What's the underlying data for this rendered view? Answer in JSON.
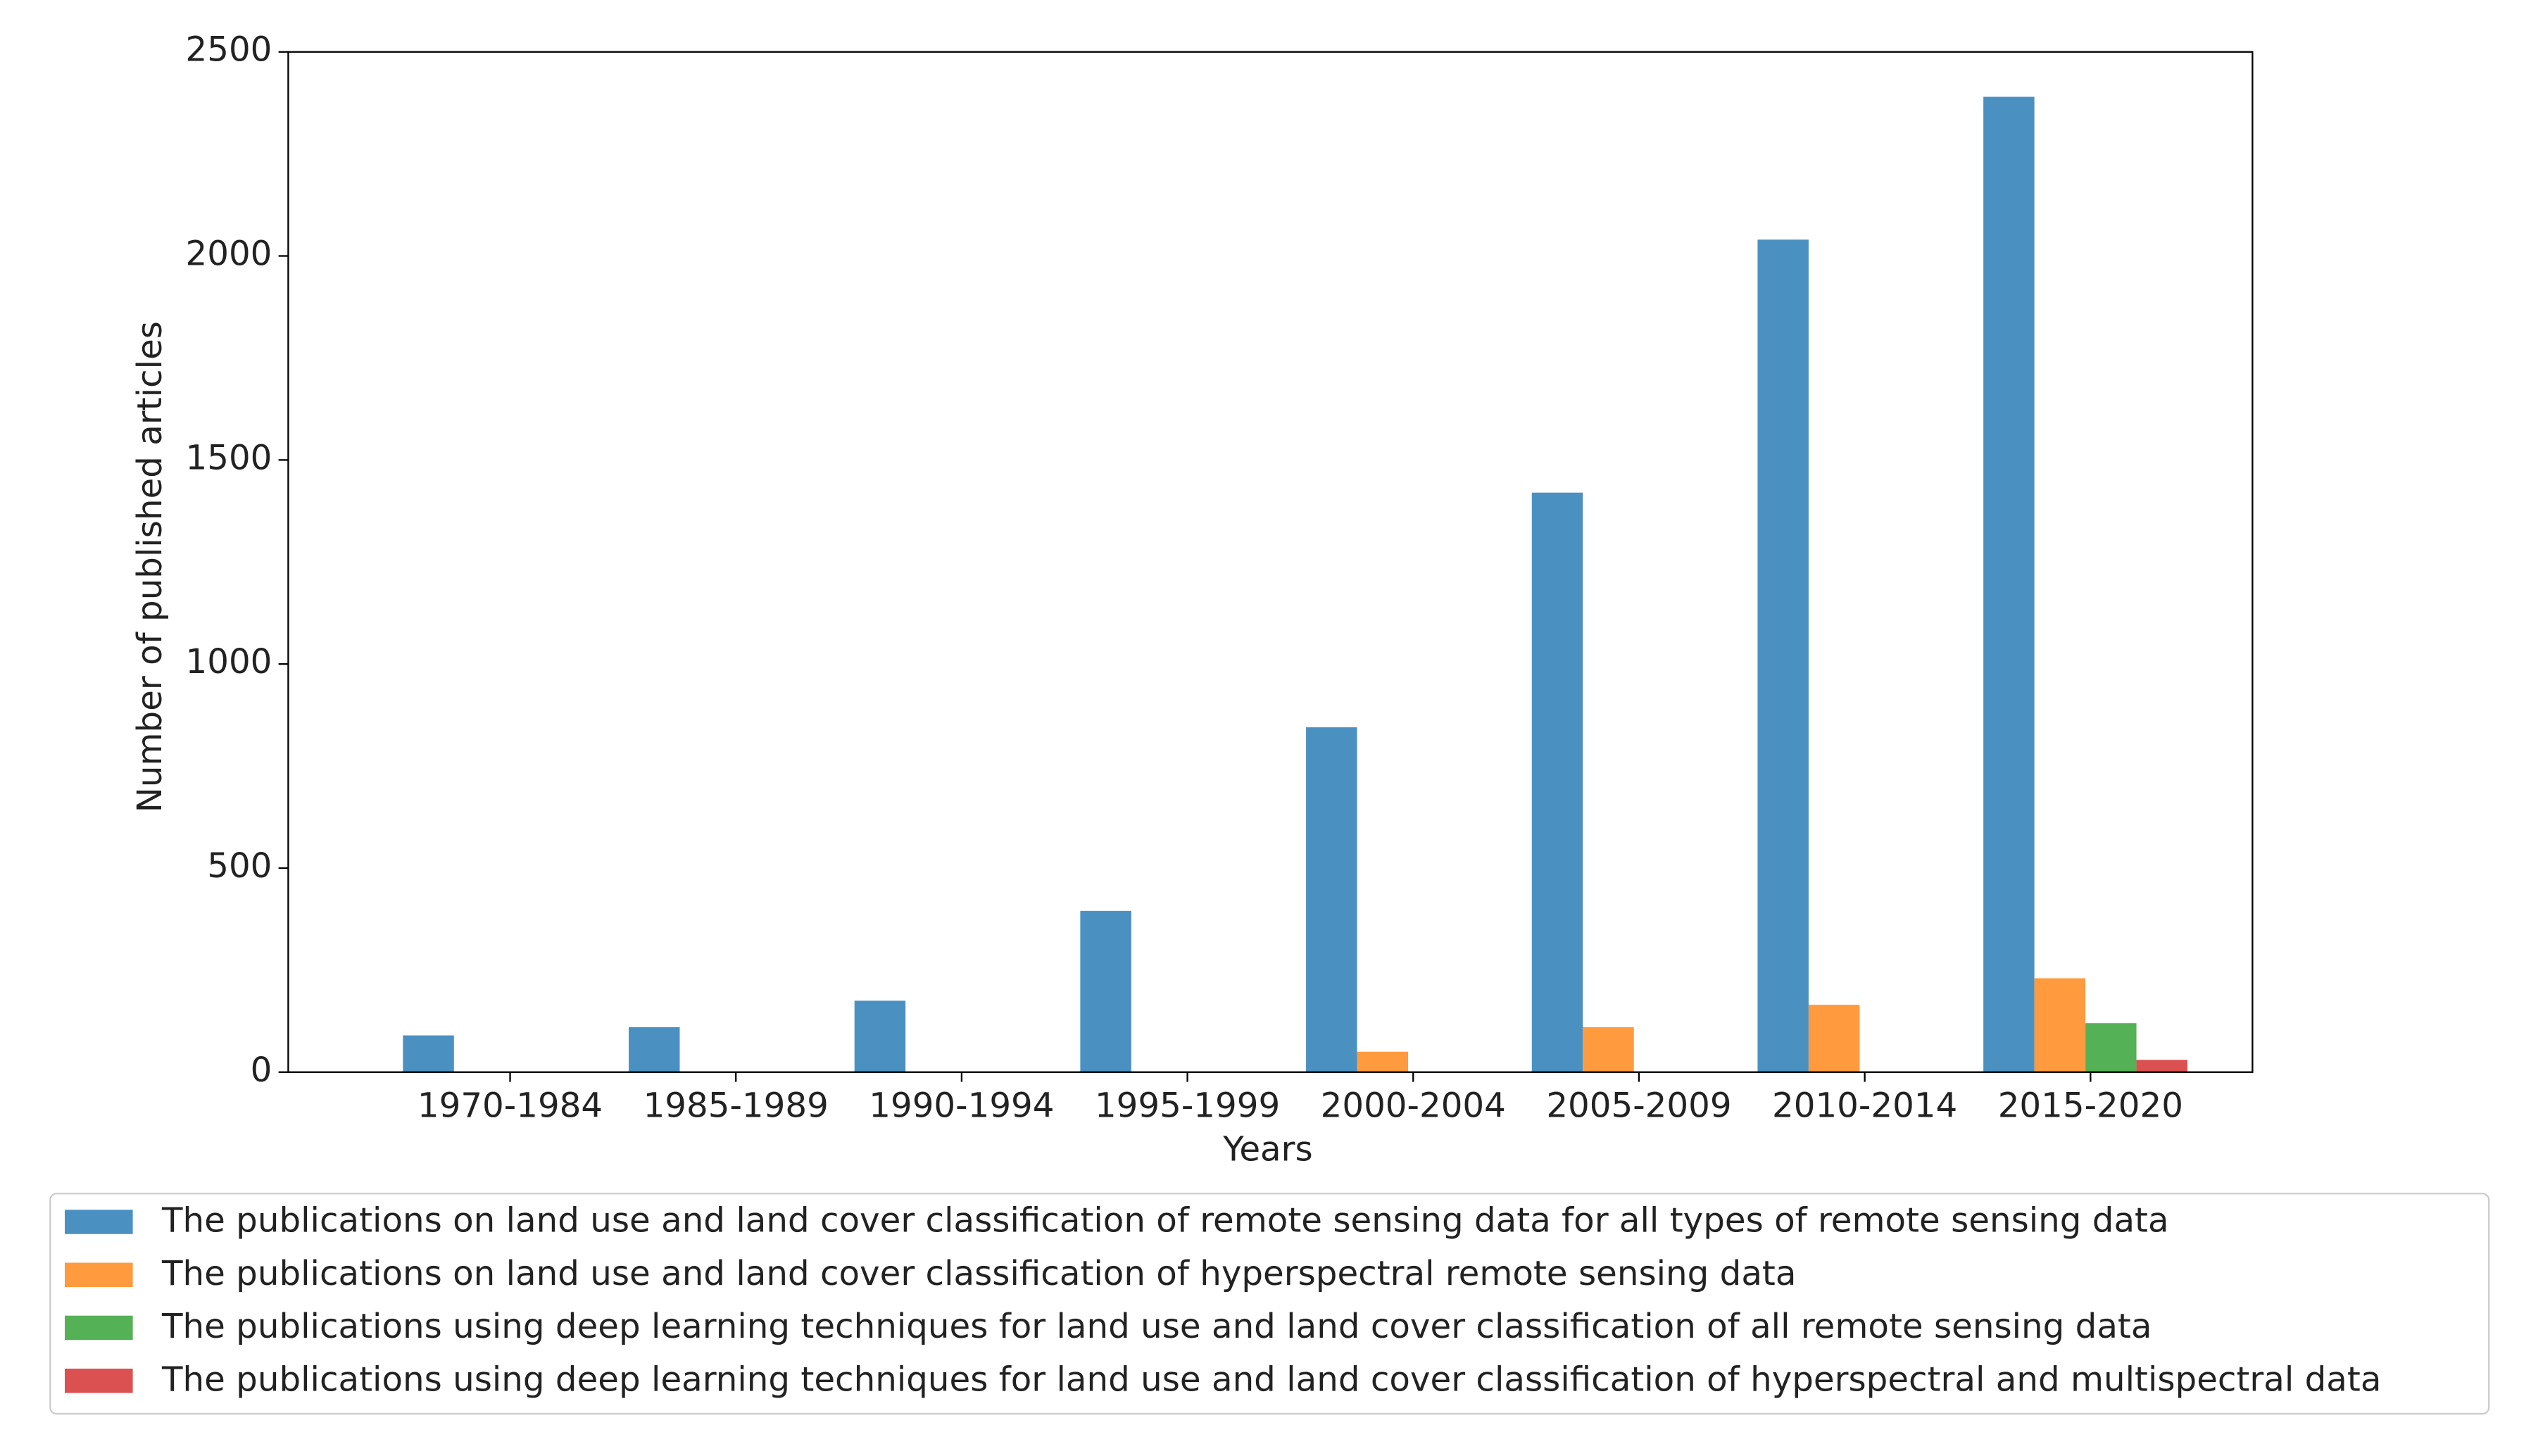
{
  "chart_data": {
    "type": "bar",
    "x_label": "Years",
    "y_label": "Number of published articles",
    "categories": [
      "1970-1984",
      "1985-1989",
      "1990-1994",
      "1995-1999",
      "2000-2004",
      "2005-2009",
      "2010-2014",
      "2015-2020"
    ],
    "series": [
      {
        "name": "The publications on land use and land cover classification of remote sensing data for all types of remote sensing data",
        "color": "#4a91c2",
        "values": [
          90,
          110,
          175,
          395,
          845,
          1420,
          2040,
          2390
        ]
      },
      {
        "name": "The publications on land use and land cover classification of hyperspectral remote sensing data",
        "color": "#ff9a3e",
        "values": [
          0,
          0,
          0,
          0,
          50,
          110,
          165,
          230
        ]
      },
      {
        "name": "The publications using deep learning techniques for land use and land cover classification of all remote sensing data",
        "color": "#55b155",
        "values": [
          0,
          0,
          0,
          0,
          0,
          0,
          0,
          120
        ]
      },
      {
        "name": "The publications using deep learning techniques for land use and land cover classification of hyperspectral and multispectral data",
        "color": "#db5152",
        "values": [
          0,
          0,
          0,
          0,
          0,
          0,
          0,
          30
        ]
      }
    ],
    "ylim": [
      0,
      2500
    ],
    "yticks": [
      0,
      500,
      1000,
      1500,
      2000,
      2500
    ],
    "grid": false,
    "legend": "bottom"
  }
}
